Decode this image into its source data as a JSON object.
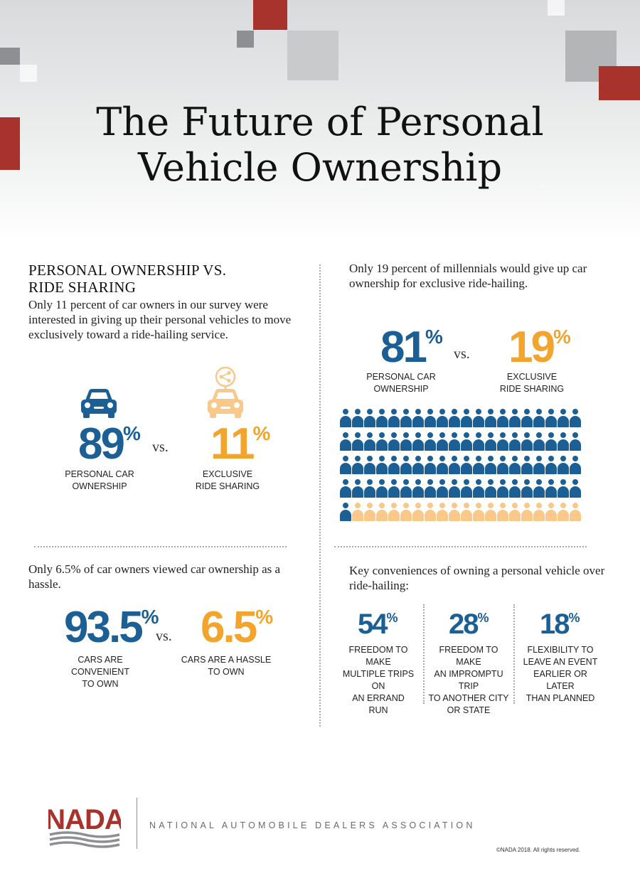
{
  "title": {
    "line1": "The Future of Personal",
    "line2": "Vehicle Ownership"
  },
  "colors": {
    "blue": "#1b5f95",
    "orange": "#f2a42d",
    "red": "#a8332d",
    "gray": "#8d8f92"
  },
  "section1": {
    "heading_line1": "PERSONAL OWNERSHIP VS.",
    "heading_line2": "RIDE SHARING",
    "text": "Only 11 percent of car owners in our survey were interested in giving up their personal vehicles to move exclusively toward a ride-hailing service.",
    "icons": {
      "left": "car-icon",
      "right": "shared-car-icon"
    },
    "left": {
      "value": "89",
      "percent": "%",
      "label_line1": "PERSONAL CAR",
      "label_line2": "OWNERSHIP"
    },
    "vs": "vs.",
    "right": {
      "value": "11",
      "percent": "%",
      "label_line1": "EXCLUSIVE",
      "label_line2": "RIDE SHARING"
    }
  },
  "section2": {
    "text": "Only 19 percent of millennials would give up car ownership for exclusive ride-hailing.",
    "left": {
      "value": "81",
      "percent": "%",
      "label_line1": "PERSONAL CAR",
      "label_line2": "OWNERSHIP"
    },
    "vs": "vs.",
    "right": {
      "value": "19",
      "percent": "%",
      "label_line1": "EXCLUSIVE",
      "label_line2": "RIDE SHARING"
    },
    "pictogram": {
      "total": 100,
      "highlight": 81,
      "icon": "person-icon"
    }
  },
  "section3": {
    "text": "Only 6.5% of car owners viewed car ownership as a hassle.",
    "left": {
      "value": "93.5",
      "percent": "%",
      "label_line1": "CARS ARE CONVENIENT",
      "label_line2": "TO OWN"
    },
    "vs": "vs.",
    "right": {
      "value": "6.5",
      "percent": "%",
      "label_line1": "CARS ARE A HASSLE",
      "label_line2": "TO OWN"
    }
  },
  "section4": {
    "text": "Key conveniences of owning a personal vehicle over ride-hailing:",
    "stats": [
      {
        "value": "54",
        "percent": "%",
        "lines": [
          "FREEDOM TO MAKE",
          "MULTIPLE TRIPS ON",
          "AN ERRAND",
          "RUN"
        ]
      },
      {
        "value": "28",
        "percent": "%",
        "lines": [
          "FREEDOM TO MAKE",
          "AN IMPROMPTU TRIP",
          "TO ANOTHER CITY",
          "OR STATE"
        ]
      },
      {
        "value": "18",
        "percent": "%",
        "lines": [
          "FLEXIBILITY TO",
          "LEAVE AN EVENT",
          "EARLIER OR LATER",
          "THAN PLANNED"
        ]
      }
    ]
  },
  "footer": {
    "logo_text": "NADA",
    "org_name": "NATIONAL AUTOMOBILE DEALERS ASSOCIATION",
    "copyright": "©NADA 2018. All rights reserved."
  }
}
